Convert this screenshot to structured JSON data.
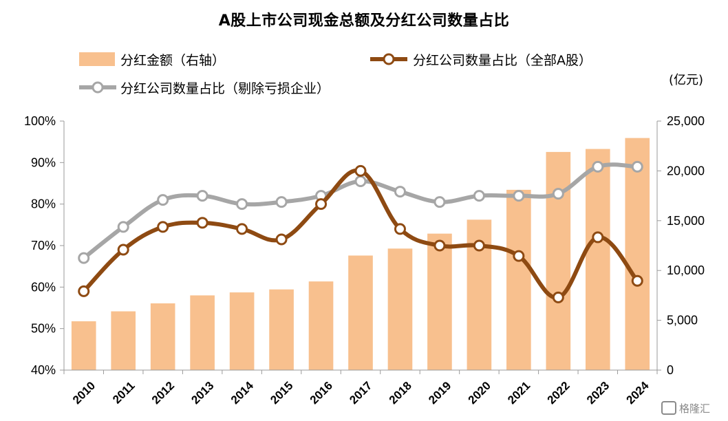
{
  "chart_data": {
    "type": "bar",
    "title": "A股上市公司现金总额及分红公司数量占比",
    "categories": [
      "2010",
      "2011",
      "2012",
      "2013",
      "2014",
      "2015",
      "2016",
      "2017",
      "2018",
      "2019",
      "2020",
      "2021",
      "2022",
      "2023",
      "2024"
    ],
    "series": [
      {
        "name": "分红金额（右轴）",
        "type": "bar",
        "axis": "right",
        "color": "#F8C08E",
        "values": [
          4900,
          5900,
          6700,
          7500,
          7800,
          8100,
          8900,
          11500,
          12200,
          13700,
          15100,
          18100,
          21900,
          22200,
          23300
        ]
      },
      {
        "name": "分红公司数量占比（全部A股）",
        "type": "line",
        "axis": "left",
        "color": "#8E4A12",
        "values": [
          0.59,
          0.69,
          0.745,
          0.755,
          0.74,
          0.715,
          0.8,
          0.88,
          0.74,
          0.7,
          0.7,
          0.675,
          0.575,
          0.72,
          0.615
        ]
      },
      {
        "name": "分红公司数量占比（剔除亏损企业）",
        "type": "line",
        "axis": "left",
        "color": "#A6A6A6",
        "values": [
          0.67,
          0.745,
          0.81,
          0.82,
          0.8,
          0.805,
          0.82,
          0.855,
          0.83,
          0.805,
          0.82,
          0.82,
          0.825,
          0.89,
          0.89
        ]
      }
    ],
    "left_axis": {
      "ylim": [
        0.4,
        1.0
      ],
      "ticks": [
        "40%",
        "50%",
        "60%",
        "70%",
        "80%",
        "90%",
        "100%"
      ]
    },
    "right_axis": {
      "ylim": [
        0,
        25000
      ],
      "ticks": [
        "0",
        "5,000",
        "10,000",
        "15,000",
        "20,000",
        "25,000"
      ],
      "unit": "(亿元)"
    },
    "grid": false,
    "legend_position": "top-left"
  },
  "watermark": {
    "label": "格隆汇",
    "icon": "watermark-logo-icon"
  }
}
